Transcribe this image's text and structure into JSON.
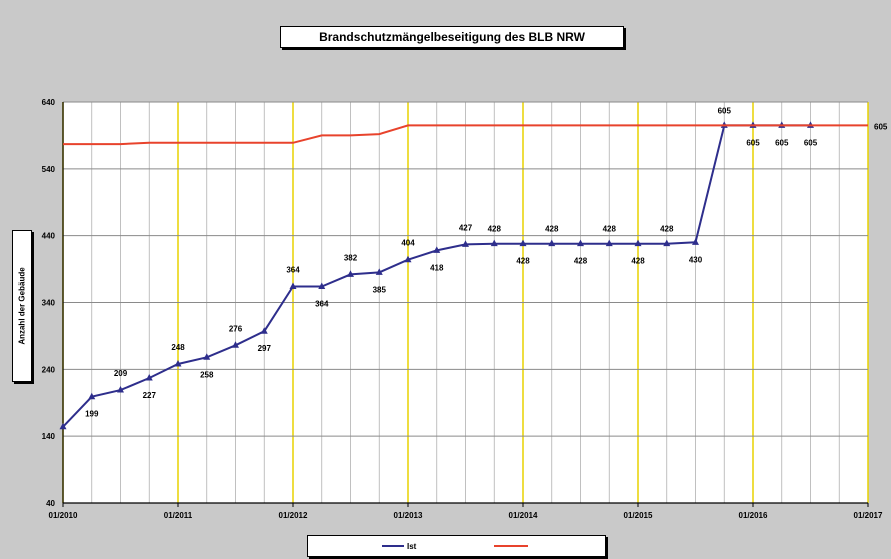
{
  "chart_data": {
    "type": "line",
    "title": "Brandschutzmängelbeseitigung des BLB NRW",
    "xlabel": "",
    "ylabel": "Anzahl der Gebäude",
    "ylim": [
      40,
      640
    ],
    "yticks": [
      40,
      140,
      240,
      340,
      440,
      540,
      640
    ],
    "xlim": [
      "2010-01",
      "2017-01"
    ],
    "xticks": [
      "01/2010",
      "01/2011",
      "01/2012",
      "01/2013",
      "01/2014",
      "01/2015",
      "01/2016",
      "01/2017"
    ],
    "grid": true,
    "legend_position": "bottom",
    "series": [
      {
        "name": "Ist",
        "color": "#2e2e8c",
        "marker": "triangle",
        "x": [
          "2010-01",
          "2010-04",
          "2010-07",
          "2010-10",
          "2011-01",
          "2011-04",
          "2011-07",
          "2011-10",
          "2012-01",
          "2012-04",
          "2012-07",
          "2012-10",
          "2013-01",
          "2013-04",
          "2013-07",
          "2013-10",
          "2014-01",
          "2014-04",
          "2014-07",
          "2014-10",
          "2015-01",
          "2015-04",
          "2015-07",
          "2015-10",
          "2016-01",
          "2016-04",
          "2016-07"
        ],
        "values": [
          154,
          199,
          209,
          227,
          248,
          258,
          276,
          297,
          364,
          364,
          382,
          385,
          404,
          418,
          427,
          428,
          428,
          428,
          428,
          428,
          428,
          428,
          430,
          605,
          605,
          605,
          605
        ],
        "labels": [
          "",
          "199",
          "209",
          "227",
          "248",
          "258",
          "276",
          "297",
          "364",
          "364",
          "382",
          "385",
          "404",
          "418",
          "427",
          "428",
          "428",
          "428",
          "428",
          "428",
          "428",
          "428",
          "430",
          "605",
          "605",
          "605",
          "605"
        ]
      },
      {
        "name": "",
        "color": "#e8432c",
        "marker": "none",
        "x": [
          "2010-01",
          "2010-07",
          "2010-10",
          "2011-01",
          "2012-01",
          "2012-04",
          "2012-07",
          "2012-10",
          "2013-01",
          "2017-01"
        ],
        "values": [
          577,
          577,
          579,
          579,
          579,
          590,
          590,
          592,
          605,
          605
        ],
        "labels": [
          "",
          "",
          "",
          "",
          "",
          "",
          "",
          "",
          "",
          "605"
        ]
      }
    ]
  },
  "legend": {
    "items": [
      {
        "label": "Ist",
        "color": "#2e2e8c"
      },
      {
        "label": "",
        "color": "#e8432c"
      }
    ]
  },
  "colors": {
    "plot_bg": "#ffffff",
    "page_bg": "#c9c9c9",
    "year_grid": "#e8d200",
    "minor_grid": "#b0b0b0",
    "h_grid": "#8a8a8a"
  }
}
